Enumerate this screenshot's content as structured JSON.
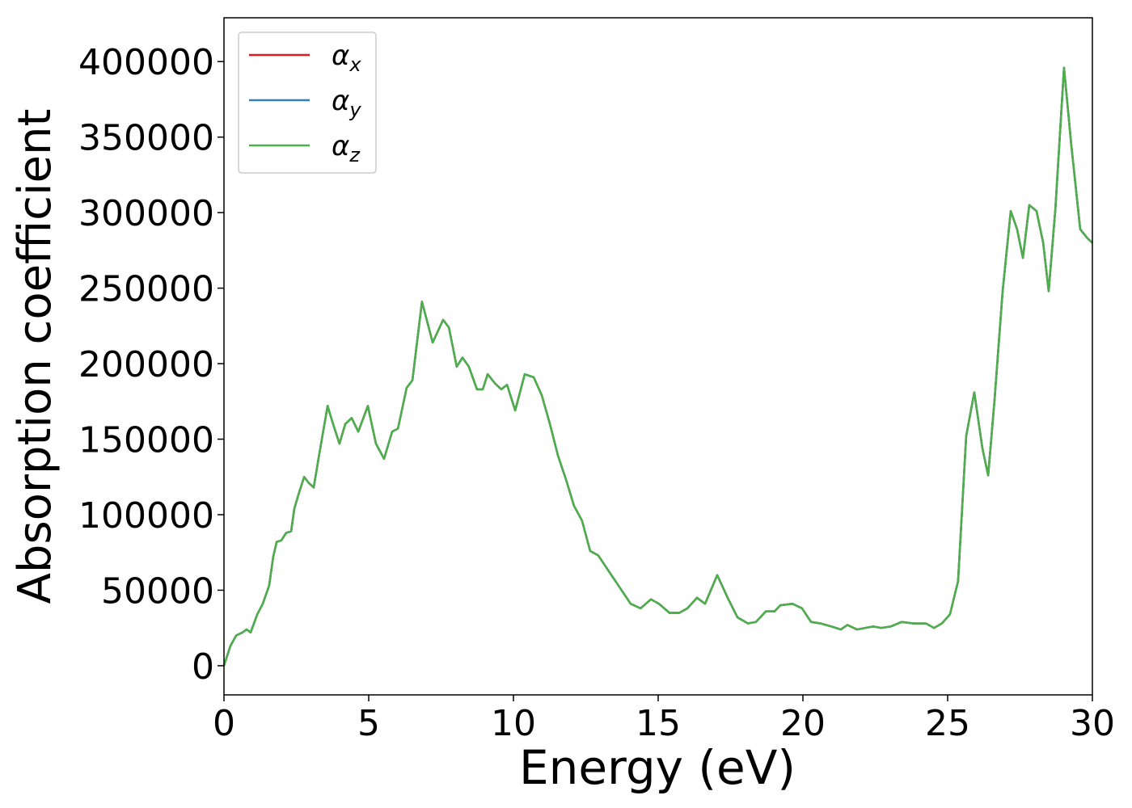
{
  "chart_data": {
    "type": "line",
    "xlabel": "Energy (eV)",
    "ylabel": "Absorption coefficient",
    "x": [
      0,
      0.22,
      0.42,
      0.64,
      0.78,
      0.92,
      1.15,
      1.34,
      1.56,
      1.7,
      1.82,
      1.98,
      2.15,
      2.32,
      2.43,
      2.6,
      2.77,
      2.93,
      3.1,
      3.3,
      3.58,
      3.77,
      3.99,
      4.19,
      4.41,
      4.64,
      4.97,
      5.25,
      5.53,
      5.81,
      6.01,
      6.31,
      6.51,
      6.84,
      7.21,
      7.57,
      7.77,
      8.04,
      8.24,
      8.46,
      8.74,
      8.94,
      9.11,
      9.36,
      9.58,
      9.78,
      10.06,
      10.39,
      10.7,
      10.98,
      11.26,
      11.54,
      11.82,
      12.09,
      12.37,
      12.65,
      12.93,
      13.21,
      13.49,
      13.77,
      14.05,
      14.39,
      14.75,
      15.03,
      15.39,
      15.73,
      16.01,
      16.34,
      16.62,
      17.04,
      17.4,
      17.74,
      18.1,
      18.38,
      18.72,
      19.02,
      19.22,
      19.64,
      19.97,
      20.28,
      20.61,
      20.98,
      21.31,
      21.54,
      21.87,
      22.15,
      22.43,
      22.71,
      23.04,
      23.41,
      23.83,
      24.25,
      24.53,
      24.8,
      25.08,
      25.36,
      25.64,
      25.92,
      26.2,
      26.4,
      26.62,
      26.9,
      27.18,
      27.4,
      27.6,
      27.82,
      28.07,
      28.3,
      28.49,
      28.72,
      29.02,
      29.27,
      29.58,
      29.83,
      30
    ],
    "series": [
      {
        "name": "αx",
        "color": "#e41a1c",
        "values": [
          0,
          13000,
          20000,
          22000,
          24000,
          22000,
          34000,
          41000,
          53000,
          72000,
          82000,
          83000,
          88000,
          89000,
          104000,
          115000,
          125000,
          121000,
          118000,
          141000,
          172000,
          160000,
          147000,
          160000,
          164000,
          155000,
          172000,
          147000,
          137000,
          155000,
          157000,
          184000,
          189000,
          241000,
          214000,
          229000,
          224000,
          198000,
          204000,
          198000,
          183000,
          183000,
          193000,
          187000,
          183000,
          186000,
          169000,
          193000,
          191000,
          179000,
          160000,
          139000,
          123000,
          106000,
          96000,
          76000,
          73000,
          65000,
          57000,
          49000,
          41000,
          38000,
          44000,
          41000,
          35000,
          35000,
          38000,
          45000,
          41000,
          60000,
          45000,
          32000,
          28000,
          29000,
          36000,
          36000,
          40000,
          41000,
          38000,
          29000,
          28000,
          26000,
          24000,
          27000,
          24000,
          25000,
          26000,
          25000,
          26000,
          29000,
          28000,
          28000,
          25000,
          28000,
          34000,
          56000,
          152000,
          181000,
          144000,
          126000,
          176000,
          248000,
          301000,
          289000,
          270000,
          305000,
          301000,
          280000,
          248000,
          302000,
          396000,
          345000,
          289000,
          283000,
          280000
        ]
      },
      {
        "name": "αy",
        "color": "#377eb8",
        "values": [
          0,
          13000,
          20000,
          22000,
          24000,
          22000,
          34000,
          41000,
          53000,
          72000,
          82000,
          83000,
          88000,
          89000,
          104000,
          115000,
          125000,
          121000,
          118000,
          141000,
          172000,
          160000,
          147000,
          160000,
          164000,
          155000,
          172000,
          147000,
          137000,
          155000,
          157000,
          184000,
          189000,
          241000,
          214000,
          229000,
          224000,
          198000,
          204000,
          198000,
          183000,
          183000,
          193000,
          187000,
          183000,
          186000,
          169000,
          193000,
          191000,
          179000,
          160000,
          139000,
          123000,
          106000,
          96000,
          76000,
          73000,
          65000,
          57000,
          49000,
          41000,
          38000,
          44000,
          41000,
          35000,
          35000,
          38000,
          45000,
          41000,
          60000,
          45000,
          32000,
          28000,
          29000,
          36000,
          36000,
          40000,
          41000,
          38000,
          29000,
          28000,
          26000,
          24000,
          27000,
          24000,
          25000,
          26000,
          25000,
          26000,
          29000,
          28000,
          28000,
          25000,
          28000,
          34000,
          56000,
          152000,
          181000,
          144000,
          126000,
          176000,
          248000,
          301000,
          289000,
          270000,
          305000,
          301000,
          280000,
          248000,
          302000,
          396000,
          345000,
          289000,
          283000,
          280000
        ]
      },
      {
        "name": "αz",
        "color": "#4daf4a",
        "values": [
          0,
          13000,
          20000,
          22000,
          24000,
          22000,
          34000,
          41000,
          53000,
          72000,
          82000,
          83000,
          88000,
          89000,
          104000,
          115000,
          125000,
          121000,
          118000,
          141000,
          172000,
          160000,
          147000,
          160000,
          164000,
          155000,
          172000,
          147000,
          137000,
          155000,
          157000,
          184000,
          189000,
          241000,
          214000,
          229000,
          224000,
          198000,
          204000,
          198000,
          183000,
          183000,
          193000,
          187000,
          183000,
          186000,
          169000,
          193000,
          191000,
          179000,
          160000,
          139000,
          123000,
          106000,
          96000,
          76000,
          73000,
          65000,
          57000,
          49000,
          41000,
          38000,
          44000,
          41000,
          35000,
          35000,
          38000,
          45000,
          41000,
          60000,
          45000,
          32000,
          28000,
          29000,
          36000,
          36000,
          40000,
          41000,
          38000,
          29000,
          28000,
          26000,
          24000,
          27000,
          24000,
          25000,
          26000,
          25000,
          26000,
          29000,
          28000,
          28000,
          25000,
          28000,
          34000,
          56000,
          152000,
          181000,
          144000,
          126000,
          176000,
          248000,
          301000,
          289000,
          270000,
          305000,
          301000,
          280000,
          248000,
          302000,
          396000,
          345000,
          289000,
          283000,
          280000
        ]
      }
    ],
    "xlim": [
      0,
      30
    ],
    "xticks": [
      0,
      5,
      10,
      15,
      20,
      25,
      30
    ],
    "ylim": [
      -19300,
      429000
    ],
    "yticks": [
      0,
      50000,
      100000,
      150000,
      200000,
      250000,
      300000,
      350000,
      400000
    ],
    "legend": "upper left",
    "grid": false
  }
}
